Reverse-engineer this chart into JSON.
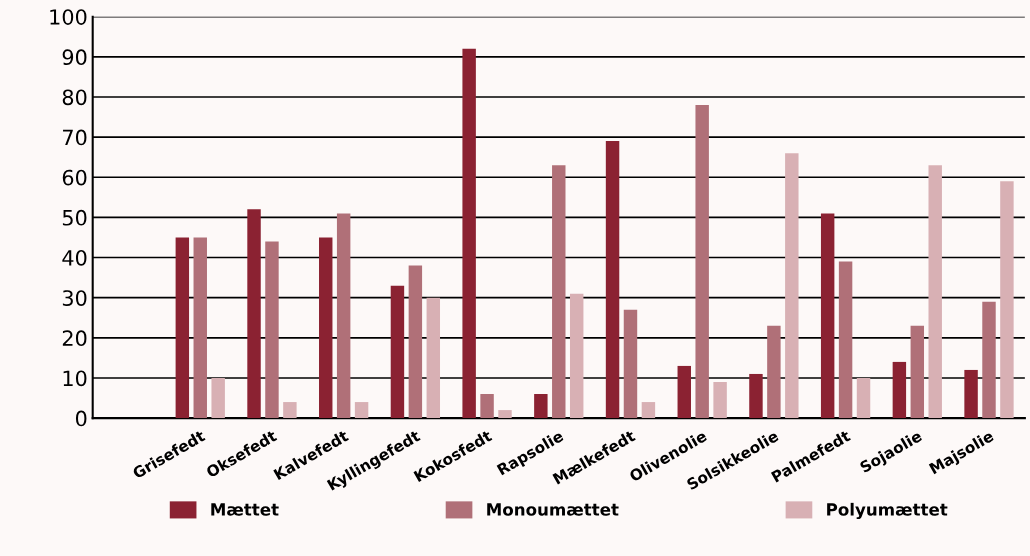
{
  "chart_data": {
    "type": "bar",
    "categories": [
      null,
      "Grisefedt",
      "Oksefedt",
      "Kalvefedt",
      "Kyllingefedt",
      "Kokosfedt",
      "Rapsolie",
      "Mælkefedt",
      "Olivenolie",
      "Solsikkeolie",
      "Palmefedt",
      "Sojaolie",
      "Majsolie"
    ],
    "series": [
      {
        "name": "Mættet",
        "color": "#8b2232",
        "values": [
          null,
          45,
          52,
          45,
          33,
          92,
          6,
          69,
          13,
          11,
          51,
          14,
          12
        ]
      },
      {
        "name": "Monoumættet",
        "color": "#b07078",
        "values": [
          null,
          45,
          44,
          51,
          38,
          6,
          63,
          27,
          78,
          23,
          39,
          23,
          29
        ]
      },
      {
        "name": "Polyumættet",
        "color": "#d8b0b4",
        "values": [
          null,
          10,
          4,
          4,
          30,
          2,
          31,
          4,
          9,
          66,
          10,
          63,
          59
        ]
      }
    ],
    "ylim": [
      0,
      100
    ],
    "yticks": [
      0,
      10,
      20,
      30,
      40,
      50,
      60,
      70,
      80,
      90,
      100
    ],
    "grid": "y",
    "legend": "bottom"
  }
}
